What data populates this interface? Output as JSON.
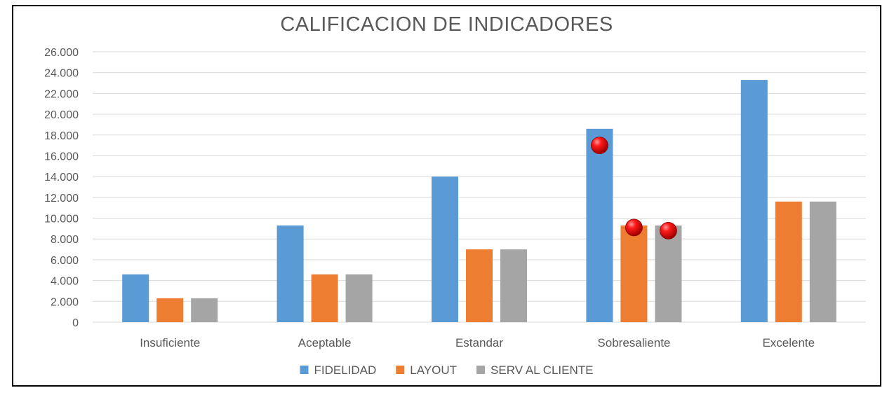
{
  "chart_data": {
    "type": "bar",
    "title": "CALIFICACION DE INDICADORES",
    "categories": [
      "Insuficiente",
      "Aceptable",
      "Estandar",
      "Sobresaliente",
      "Excelente"
    ],
    "series": [
      {
        "name": "FIDELIDAD",
        "color": "#5B9BD5",
        "values": [
          4600,
          9300,
          14000,
          18600,
          23300
        ]
      },
      {
        "name": "LAYOUT",
        "color": "#ED7D31",
        "values": [
          2300,
          4600,
          7000,
          9300,
          11600
        ]
      },
      {
        "name": "SERV AL CLIENTE",
        "color": "#A5A5A5",
        "values": [
          2300,
          4600,
          7000,
          9300,
          11600
        ]
      }
    ],
    "y_ticks": [
      "0",
      "2.000",
      "4.000",
      "6.000",
      "8.000",
      "10.000",
      "12.000",
      "14.000",
      "16.000",
      "18.000",
      "20.000",
      "22.000",
      "24.000",
      "26.000"
    ],
    "ylim": [
      0,
      26000
    ],
    "grid": true,
    "legend": "bottom",
    "markers": [
      {
        "category": "Sobresaliente",
        "series": "FIDELIDAD",
        "value": 17000,
        "color": "#E00000"
      },
      {
        "category": "Sobresaliente",
        "series": "LAYOUT",
        "value": 9100,
        "color": "#E00000"
      },
      {
        "category": "Sobresaliente",
        "series": "SERV AL CLIENTE",
        "value": 8800,
        "color": "#E00000"
      }
    ]
  }
}
